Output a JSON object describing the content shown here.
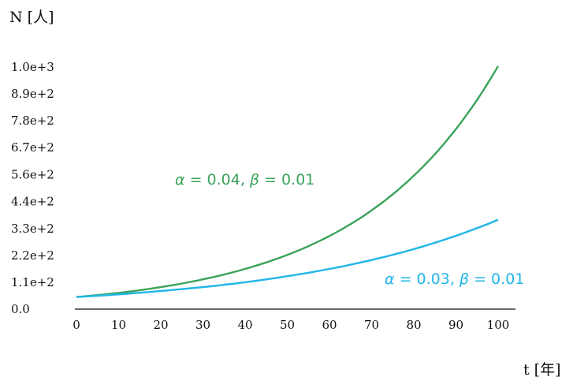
{
  "chart_data": {
    "type": "line",
    "title": "",
    "xlabel": "t [年]",
    "ylabel": "N [人]",
    "xlim": [
      0,
      100
    ],
    "ylim": [
      0,
      1000
    ],
    "x_ticks": [
      0,
      10,
      20,
      30,
      40,
      50,
      60,
      70,
      80,
      90,
      100
    ],
    "y_ticks": [
      0,
      111,
      222,
      333,
      444,
      556,
      667,
      778,
      889,
      1000
    ],
    "y_tick_labels": [
      "0.0",
      "1.1e+2",
      "2.2e+2",
      "3.3e+2",
      "4.4e+2",
      "5.6e+2",
      "6.7e+2",
      "7.8e+2",
      "8.9e+2",
      "1.0e+3"
    ],
    "grid": false,
    "x": [
      0,
      10,
      20,
      30,
      40,
      50,
      60,
      70,
      80,
      90,
      100
    ],
    "series": [
      {
        "label_parts": [
          "α",
          " = 0.04, ",
          "β",
          " = 0.01"
        ],
        "color": "#3aa35a",
        "values": [
          50,
          67,
          91,
          123,
          166,
          224,
          302,
          408,
          551,
          744,
          1004
        ]
      },
      {
        "label_parts": [
          "α",
          " = 0.03, ",
          "β",
          " = 0.01"
        ],
        "color": "#1fb6e8",
        "values": [
          50,
          61,
          75,
          91,
          111,
          136,
          166,
          203,
          248,
          303,
          369
        ]
      }
    ]
  }
}
